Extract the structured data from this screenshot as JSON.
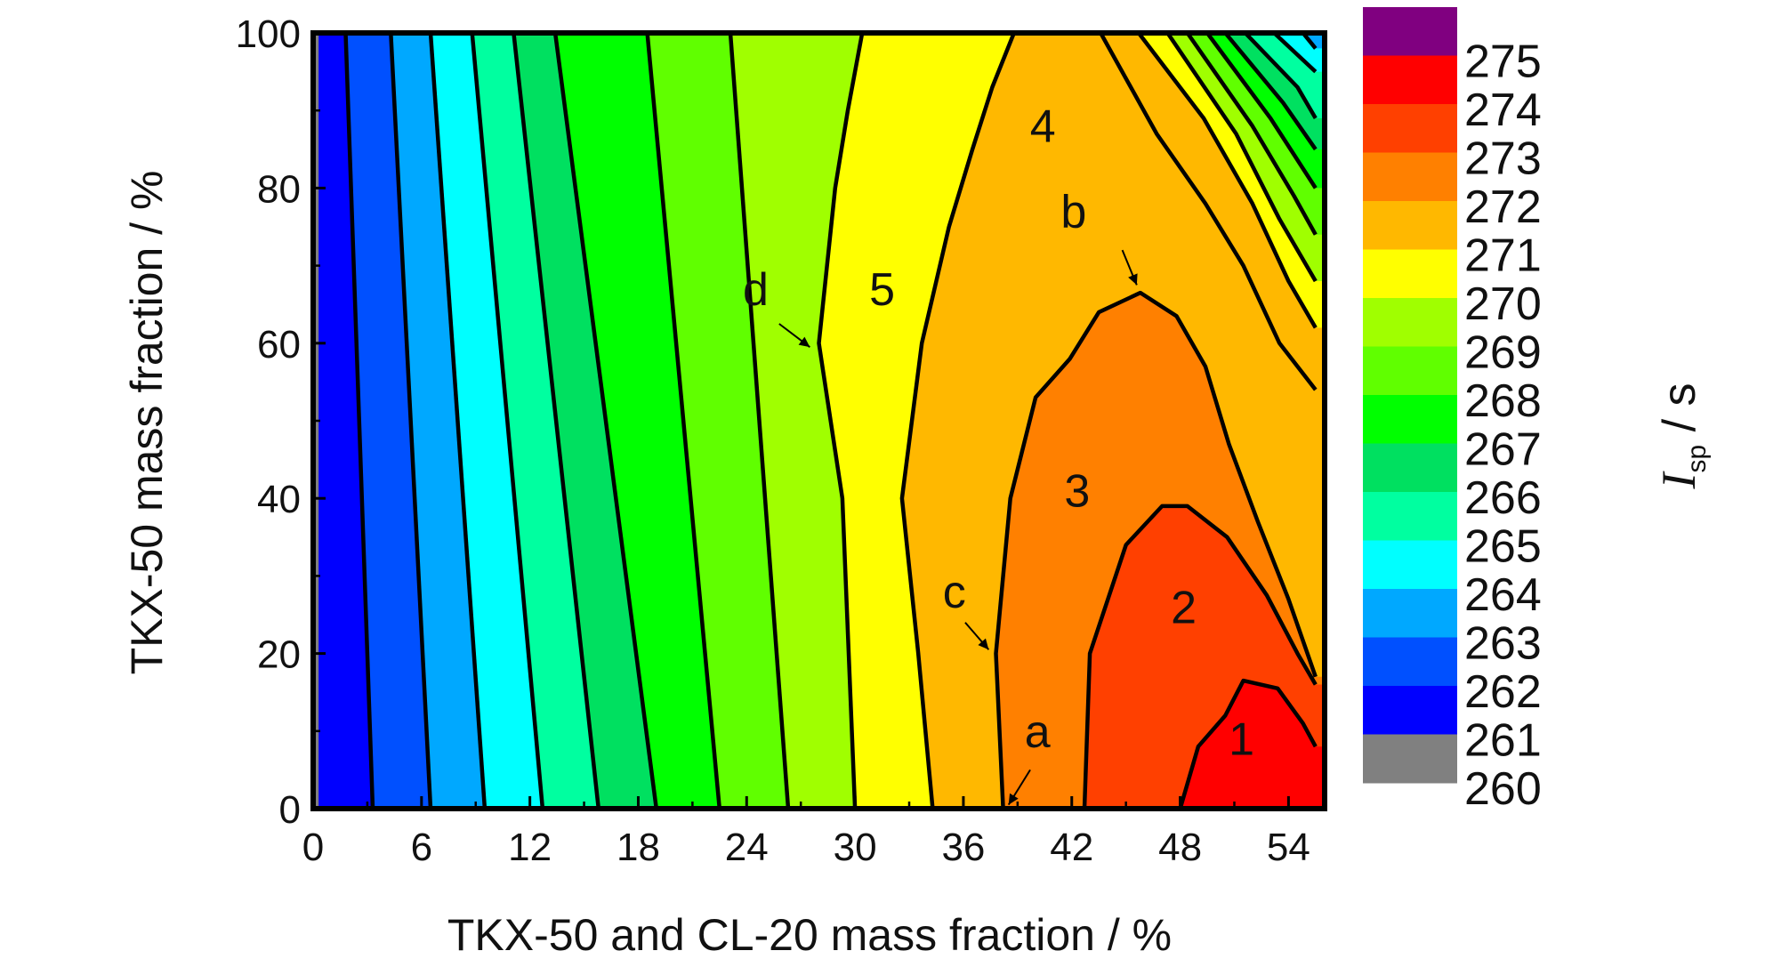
{
  "chart_data": {
    "type": "contour",
    "xlabel": "TKX-50 and CL-20 mass fraction / %",
    "ylabel": "TKX-50 mass fraction / %",
    "xlim": [
      0,
      56
    ],
    "ylim": [
      0,
      100
    ],
    "xticks": [
      0,
      6,
      12,
      18,
      24,
      30,
      36,
      42,
      48,
      54
    ],
    "yticks": [
      0,
      20,
      40,
      60,
      80,
      100
    ],
    "colorbar": {
      "label_symbol": "I",
      "label_subscript": "sp",
      "label_unit": " / s",
      "levels": [
        275,
        274,
        273,
        272,
        271,
        270,
        269,
        268,
        267,
        266,
        265,
        264,
        263,
        262,
        261,
        260
      ],
      "colors": [
        "#800080",
        "#ff0000",
        "#ff4000",
        "#ff8000",
        "#ffb800",
        "#ffff00",
        "#a0ff00",
        "#60ff00",
        "#00ff00",
        "#00e060",
        "#00ffa0",
        "#00ffff",
        "#00a8ff",
        "#0050ff",
        "#0000ff",
        "#808080"
      ]
    },
    "contours": [
      {
        "level": 261,
        "points": [
          [
            0.3,
            0
          ],
          [
            0.3,
            100
          ]
        ]
      },
      {
        "level": 262,
        "points": [
          [
            3.3,
            0
          ],
          [
            1.8,
            100
          ]
        ]
      },
      {
        "level": 263,
        "points": [
          [
            6.5,
            0
          ],
          [
            4.3,
            100
          ]
        ]
      },
      {
        "level": 264,
        "points": [
          [
            9.5,
            0
          ],
          [
            6.5,
            100
          ]
        ]
      },
      {
        "level": 265,
        "points": [
          [
            12.7,
            0
          ],
          [
            8.8,
            100
          ]
        ]
      },
      {
        "level": 266,
        "points": [
          [
            15.8,
            0
          ],
          [
            11.1,
            100
          ]
        ]
      },
      {
        "level": 267,
        "points": [
          [
            19.0,
            0
          ],
          [
            13.4,
            100
          ]
        ]
      },
      {
        "level": 268,
        "points": [
          [
            22.5,
            0
          ],
          [
            18.5,
            100
          ]
        ]
      },
      {
        "level": 269,
        "points": [
          [
            26.3,
            0
          ],
          [
            23.1,
            100
          ]
        ]
      },
      {
        "level": 270,
        "points": [
          [
            30.0,
            0
          ],
          [
            29.3,
            40
          ],
          [
            28.0,
            60
          ],
          [
            28.9,
            80
          ],
          [
            29.6,
            90
          ],
          [
            30.4,
            100
          ]
        ]
      },
      {
        "level": 271,
        "points": [
          [
            34.3,
            0
          ],
          [
            33.5,
            20
          ],
          [
            32.6,
            40
          ],
          [
            33.7,
            60
          ],
          [
            35.2,
            75
          ],
          [
            36.5,
            85
          ],
          [
            37.6,
            93
          ],
          [
            38.8,
            100
          ]
        ]
      },
      {
        "level": 272,
        "points": [
          [
            38.2,
            0
          ],
          [
            37.8,
            20
          ],
          [
            38.6,
            40
          ],
          [
            40.0,
            53
          ],
          [
            41.9,
            58
          ],
          [
            43.5,
            64
          ],
          [
            45.8,
            66.5
          ],
          [
            47.8,
            63.5
          ],
          [
            49.4,
            57
          ],
          [
            50.7,
            47
          ],
          [
            52.3,
            37
          ],
          [
            54.0,
            27
          ],
          [
            55.5,
            17
          ]
        ]
      },
      {
        "level": 273,
        "points": [
          [
            42.7,
            0
          ],
          [
            43.0,
            20
          ],
          [
            45.0,
            34
          ],
          [
            47.0,
            39
          ],
          [
            48.4,
            39
          ],
          [
            50.6,
            35
          ],
          [
            52.8,
            27.5
          ],
          [
            54.5,
            20
          ],
          [
            55.5,
            16
          ]
        ]
      },
      {
        "level": 274,
        "points": [
          [
            48.0,
            0
          ],
          [
            49.0,
            8
          ],
          [
            50.5,
            12
          ],
          [
            51.5,
            16.5
          ],
          [
            53.4,
            15.5
          ],
          [
            54.8,
            11
          ],
          [
            55.5,
            8
          ]
        ]
      },
      {
        "level": 271.5,
        "points": [
          [
            43.6,
            100
          ],
          [
            46.7,
            87
          ],
          [
            49.4,
            78
          ],
          [
            51.5,
            70
          ],
          [
            53.5,
            60
          ],
          [
            55.5,
            54
          ]
        ]
      },
      {
        "level": 271.0,
        "points": [
          [
            45.7,
            100
          ],
          [
            49.3,
            89
          ],
          [
            52.0,
            78
          ],
          [
            54.0,
            68
          ],
          [
            55.5,
            62
          ]
        ]
      },
      {
        "level": 270.0,
        "points": [
          [
            47.3,
            100
          ],
          [
            51.1,
            87
          ],
          [
            53.5,
            76
          ],
          [
            55.5,
            68
          ]
        ]
      },
      {
        "level": 269.0,
        "points": [
          [
            48.4,
            100
          ],
          [
            52.0,
            88
          ],
          [
            54.3,
            79
          ],
          [
            55.5,
            74
          ]
        ]
      },
      {
        "level": 268.0,
        "points": [
          [
            49.5,
            100
          ],
          [
            53.0,
            89
          ],
          [
            55.5,
            80
          ]
        ]
      },
      {
        "level": 267.0,
        "points": [
          [
            50.5,
            100
          ],
          [
            53.7,
            91
          ],
          [
            55.5,
            85
          ]
        ]
      },
      {
        "level": 266.0,
        "points": [
          [
            51.6,
            100
          ],
          [
            54.5,
            93
          ],
          [
            55.5,
            89
          ]
        ]
      },
      {
        "level": 265.0,
        "points": [
          [
            53.2,
            100
          ],
          [
            55.5,
            95
          ]
        ]
      },
      {
        "level": 264.0,
        "points": [
          [
            54.8,
            100
          ],
          [
            55.5,
            98
          ]
        ]
      }
    ],
    "annotations": [
      {
        "text": "1",
        "x": 51.4,
        "y": 9
      },
      {
        "text": "2",
        "x": 48.2,
        "y": 26
      },
      {
        "text": "3",
        "x": 42.3,
        "y": 41
      },
      {
        "text": "4",
        "x": 40.4,
        "y": 88
      },
      {
        "text": "5",
        "x": 31.5,
        "y": 67
      },
      {
        "text": "a",
        "x": 40.1,
        "y": 10
      },
      {
        "text": "b",
        "x": 42.1,
        "y": 77
      },
      {
        "text": "c",
        "x": 35.5,
        "y": 28
      },
      {
        "text": "d",
        "x": 24.5,
        "y": 67
      }
    ],
    "arrows": [
      {
        "from": [
          39.7,
          5
        ],
        "to": [
          38.5,
          0.5
        ]
      },
      {
        "from": [
          44.8,
          72
        ],
        "to": [
          45.6,
          67.5
        ]
      },
      {
        "from": [
          36.1,
          24
        ],
        "to": [
          37.4,
          20.5
        ]
      },
      {
        "from": [
          25.8,
          62.5
        ],
        "to": [
          27.5,
          59.5
        ]
      }
    ]
  }
}
